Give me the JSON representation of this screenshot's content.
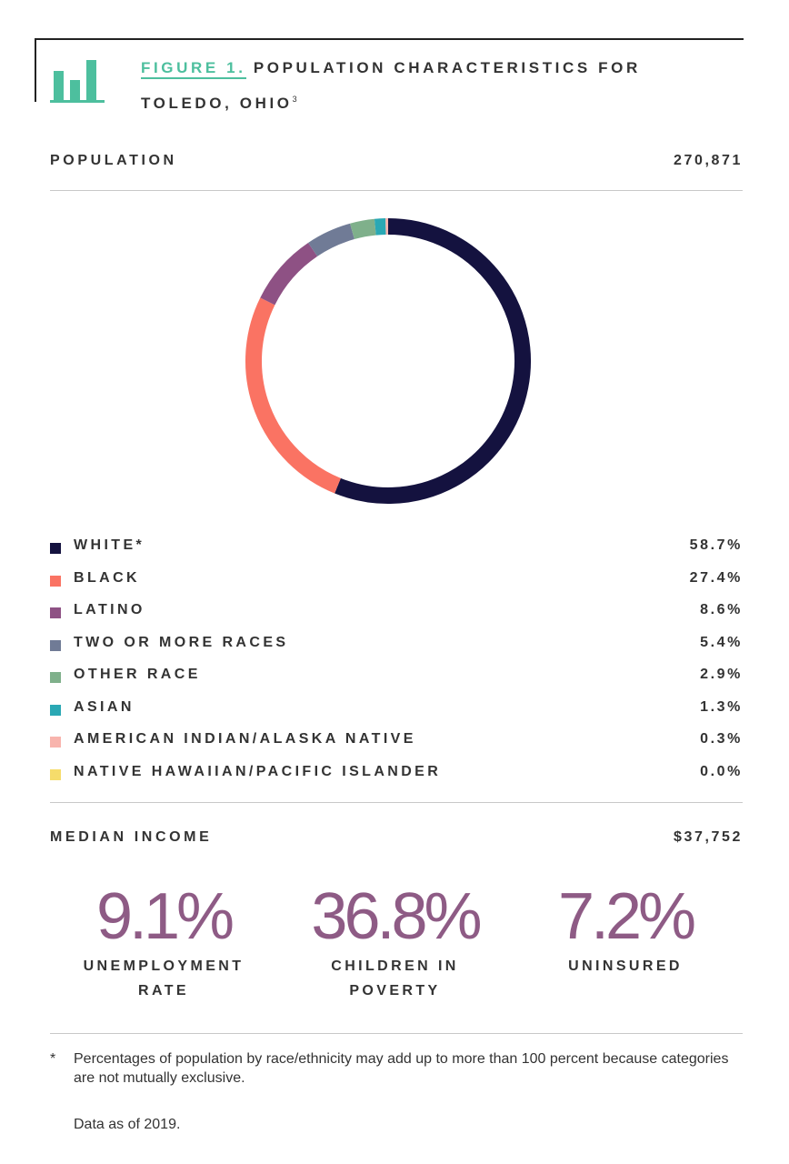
{
  "figure": {
    "label": "FIGURE 1.",
    "title_line1": "POPULATION CHARACTERISTICS FOR",
    "title_line2": "TOLEDO, OHIO",
    "superscript": "3"
  },
  "population": {
    "label": "POPULATION",
    "value": "270,871"
  },
  "median_income": {
    "label": "MEDIAN INCOME",
    "value": "$37,752"
  },
  "chart_data": {
    "type": "pie",
    "donut": true,
    "categories": [
      "WHITE*",
      "BLACK",
      "LATINO",
      "TWO OR MORE RACES",
      "OTHER RACE",
      "ASIAN",
      "AMERICAN INDIAN/ALASKA NATIVE",
      "NATIVE HAWAIIAN/PACIFIC ISLANDER"
    ],
    "values": [
      58.7,
      27.4,
      8.6,
      5.4,
      2.9,
      1.3,
      0.3,
      0.0
    ],
    "labels": [
      "58.7%",
      "27.4%",
      "8.6%",
      "5.4%",
      "2.9%",
      "1.3%",
      "0.3%",
      "0.0%"
    ],
    "colors": [
      "#14123f",
      "#fa7363",
      "#8e5184",
      "#707b96",
      "#7fb08b",
      "#2aa8b4",
      "#f8b4ad",
      "#f6dc6b"
    ],
    "legend": "bottom"
  },
  "stats": [
    {
      "value": "9.1%",
      "line1": "UNEMPLOYMENT",
      "line2": "RATE"
    },
    {
      "value": "36.8%",
      "line1": "CHILDREN IN",
      "line2": "POVERTY"
    },
    {
      "value": "7.2%",
      "line1": "UNINSURED",
      "line2": ""
    }
  ],
  "footnote": {
    "marker": "*",
    "text": "Percentages of population by race/ethnicity may add up to more than 100 percent because categories are not mutually exclusive."
  },
  "data_as_of": "Data as of 2019.",
  "accent_color": "#4dbf9e",
  "stat_color": "#8e5b85"
}
